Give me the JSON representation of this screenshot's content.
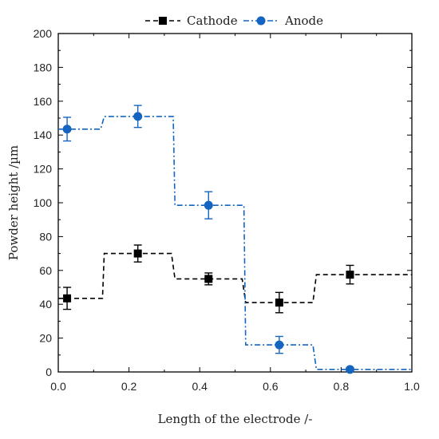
{
  "chart_data": {
    "type": "line",
    "xlabel": "Length of the electrode /-",
    "ylabel": "Powder height /µm",
    "xlim": [
      0.0,
      1.0
    ],
    "ylim": [
      0,
      200
    ],
    "x_ticks": [
      0.0,
      0.2,
      0.4,
      0.6,
      0.8,
      1.0
    ],
    "x_tick_labels": [
      "0.0",
      "0.2",
      "0.4",
      "0.6",
      "0.8",
      "1.0"
    ],
    "y_ticks": [
      0,
      20,
      40,
      60,
      80,
      100,
      120,
      140,
      160,
      180,
      200
    ],
    "y_tick_labels": [
      "0",
      "20",
      "40",
      "60",
      "80",
      "100",
      "120",
      "140",
      "160",
      "180",
      "200"
    ],
    "grid": false,
    "legend_position": "top-center",
    "series": [
      {
        "name": "Cathode",
        "color": "#000000",
        "marker": "square",
        "line_style": "dashed",
        "points": [
          {
            "x": 0.025,
            "y": 43.5,
            "err": 6.5
          },
          {
            "x": 0.225,
            "y": 70,
            "err": 5
          },
          {
            "x": 0.425,
            "y": 55,
            "err": 3.5
          },
          {
            "x": 0.625,
            "y": 41,
            "err": 6
          },
          {
            "x": 0.825,
            "y": 57.5,
            "err": 5.5
          }
        ],
        "step_profile": [
          {
            "x": 0.0,
            "y": 43.5
          },
          {
            "x": 0.125,
            "y": 43.5
          },
          {
            "x": 0.13,
            "y": 70
          },
          {
            "x": 0.32,
            "y": 70
          },
          {
            "x": 0.33,
            "y": 55
          },
          {
            "x": 0.52,
            "y": 55
          },
          {
            "x": 0.53,
            "y": 41
          },
          {
            "x": 0.72,
            "y": 41
          },
          {
            "x": 0.73,
            "y": 57.5
          },
          {
            "x": 1.0,
            "y": 57.5
          }
        ]
      },
      {
        "name": "Anode",
        "color": "#1565C0",
        "marker": "circle",
        "line_style": "dash-dot",
        "points": [
          {
            "x": 0.025,
            "y": 143.5,
            "err": 7
          },
          {
            "x": 0.225,
            "y": 151,
            "err": 6.5
          },
          {
            "x": 0.425,
            "y": 98.5,
            "err": 8
          },
          {
            "x": 0.625,
            "y": 16,
            "err": 5
          },
          {
            "x": 0.825,
            "y": 1.5,
            "err": 1
          }
        ],
        "step_profile": [
          {
            "x": 0.0,
            "y": 143.5
          },
          {
            "x": 0.12,
            "y": 143.5
          },
          {
            "x": 0.13,
            "y": 151
          },
          {
            "x": 0.325,
            "y": 151
          },
          {
            "x": 0.33,
            "y": 98.5
          },
          {
            "x": 0.525,
            "y": 98.5
          },
          {
            "x": 0.53,
            "y": 16
          },
          {
            "x": 0.72,
            "y": 16
          },
          {
            "x": 0.73,
            "y": 1.5
          },
          {
            "x": 1.0,
            "y": 1.5
          }
        ]
      }
    ]
  }
}
